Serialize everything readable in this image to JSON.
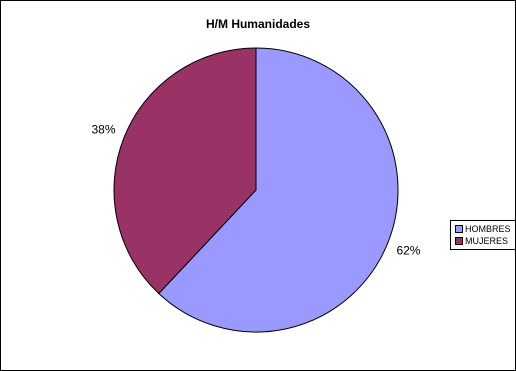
{
  "chart_data": {
    "type": "pie",
    "title": "H/M Humanidades",
    "categories": [
      "HOMBRES",
      "MUJERES"
    ],
    "values": [
      62,
      38
    ],
    "labels": [
      "62%",
      "38%"
    ],
    "colors": [
      "#9999FF",
      "#993366"
    ],
    "legend_position": "right"
  },
  "legend": {
    "items": [
      {
        "label": "HOMBRES",
        "color": "#9999FF"
      },
      {
        "label": "MUJERES",
        "color": "#993366"
      }
    ]
  }
}
